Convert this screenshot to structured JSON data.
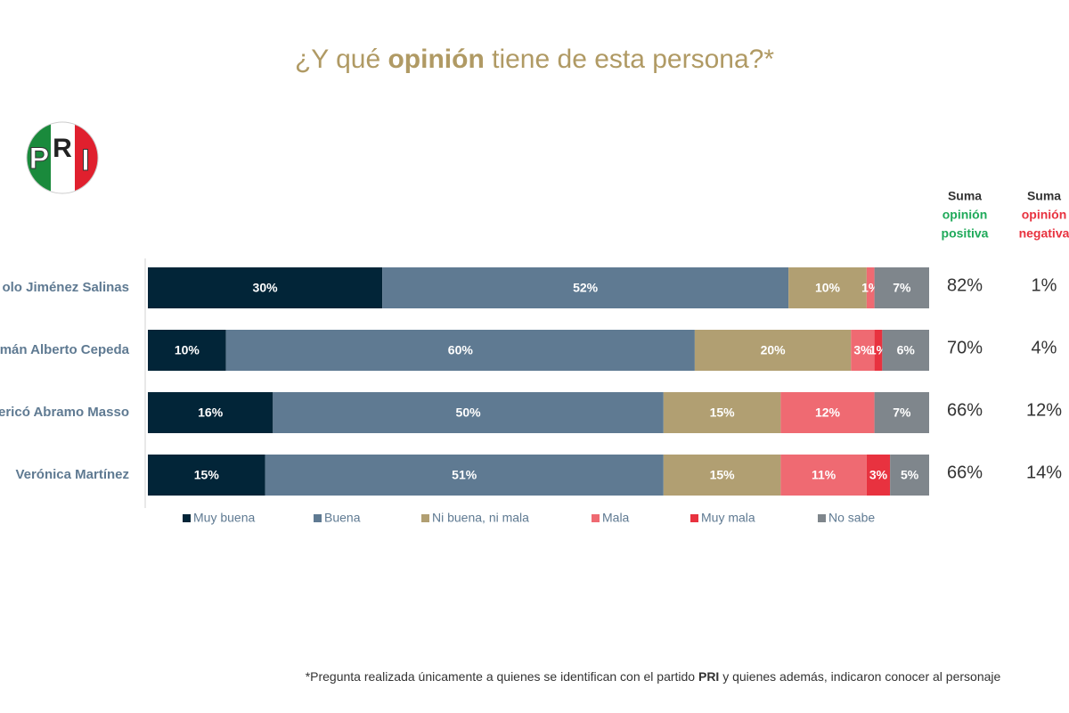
{
  "chart_data": {
    "type": "stacked-barh",
    "title_parts": [
      "¿Y qué ",
      "opinión",
      " tiene de esta persona?*"
    ],
    "logo": [
      "P",
      "R",
      "I"
    ],
    "categories": [
      "olo Jiménez Salinas",
      "mán Alberto Cepeda",
      "ericó Abramo Masso",
      "Verónica Martínez"
    ],
    "xlim": [
      0,
      100
    ],
    "series": [
      {
        "name": "Muy buena",
        "color": "#022538",
        "values": [
          30,
          10,
          16,
          15
        ],
        "value_labels": [
          "30%",
          "10%",
          "16%",
          "15%"
        ]
      },
      {
        "name": "Buena",
        "color": "#5f7a92",
        "values": [
          52,
          60,
          50,
          51
        ],
        "value_labels": [
          "52%",
          "60%",
          "50%",
          "51%"
        ]
      },
      {
        "name": "Ni buena, ni mala",
        "color": "#b19f72",
        "values": [
          10,
          20,
          15,
          15
        ],
        "value_labels": [
          "10%",
          "20%",
          "15%",
          "15%"
        ]
      },
      {
        "name": "Mala",
        "color": "#ef6a72",
        "values": [
          1,
          3,
          12,
          11
        ],
        "value_labels": [
          "1%",
          "3%",
          "12%",
          "11%"
        ]
      },
      {
        "name": "Muy mala",
        "color": "#e8323f",
        "values": [
          0,
          1,
          0,
          3
        ],
        "value_labels": [
          null,
          "1%",
          null,
          "3%"
        ]
      },
      {
        "name": "No sabe",
        "color": "#7f868c",
        "values": [
          7,
          6,
          7,
          5
        ],
        "value_labels": [
          "7%",
          "6%",
          "7%",
          "5%"
        ]
      }
    ],
    "summary_columns": [
      {
        "header": [
          "Suma",
          "opinión",
          "positiva"
        ],
        "color": "#1faa5a",
        "values": [
          82,
          70,
          66,
          66
        ],
        "value_labels": [
          "82%",
          "70%",
          "66%",
          "66%"
        ]
      },
      {
        "header": [
          "Suma",
          "opinión",
          "negativa"
        ],
        "color": "#e8323f",
        "values": [
          1,
          4,
          12,
          14
        ],
        "value_labels": [
          "1%",
          "4%",
          "12%",
          "14%"
        ]
      }
    ],
    "footnote_parts": [
      "*Pregunta realizada únicamente a quienes se identifican con el partido ",
      "PRI",
      " y quienes además, indicaron conocer al personaje"
    ]
  }
}
